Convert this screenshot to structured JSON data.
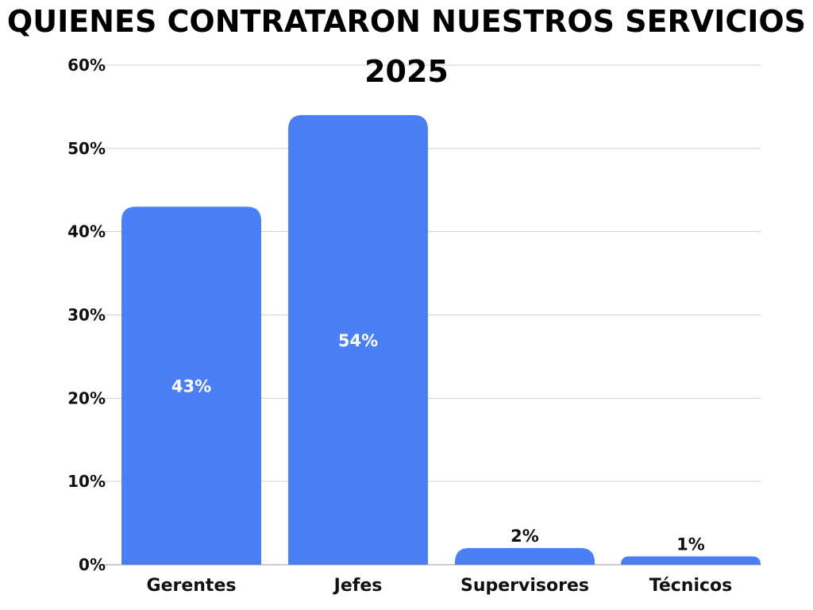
{
  "chart_data": {
    "type": "bar",
    "title_lines": [
      "QUIENES CONTRATARON NUESTROS SERVICIOS",
      "2025"
    ],
    "categories": [
      "Gerentes",
      "Jefes",
      "Supervisores",
      "Técnicos"
    ],
    "values": [
      43,
      54,
      2,
      1
    ],
    "data_labels": [
      "43%",
      "54%",
      "2%",
      "1%"
    ],
    "y_ticks": [
      "0%",
      "10%",
      "20%",
      "30%",
      "40%",
      "50%",
      "60%"
    ],
    "ylim": [
      0,
      60
    ],
    "xlabel": "",
    "ylabel": "",
    "grid": true,
    "bar_color": "#4a7ff5"
  }
}
